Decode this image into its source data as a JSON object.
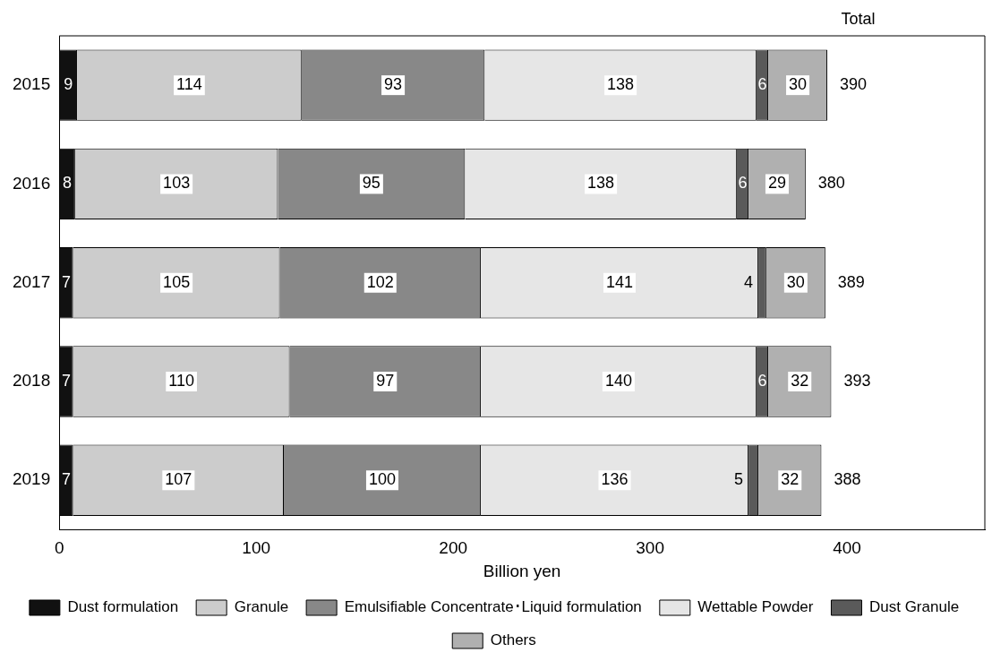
{
  "chart_data": {
    "type": "bar",
    "orientation": "horizontal",
    "stacked": true,
    "xlabel": "Billion yen",
    "categories": [
      "2015",
      "2016",
      "2017",
      "2018",
      "2019"
    ],
    "series": [
      {
        "name": "Dust formulation",
        "color": "#111111",
        "values": [
          9,
          8,
          7,
          7,
          7
        ]
      },
      {
        "name": "Granule",
        "color": "#cccccc",
        "values": [
          114,
          103,
          105,
          110,
          107
        ]
      },
      {
        "name": "Emulsifiable Concentrate･Liquid formulation",
        "color": "#888888",
        "values": [
          93,
          95,
          102,
          97,
          100
        ]
      },
      {
        "name": "Wettable Powder",
        "color": "#e6e6e6",
        "values": [
          138,
          138,
          141,
          140,
          136
        ]
      },
      {
        "name": "Dust Granule",
        "color": "#5a5a5a",
        "values": [
          6,
          6,
          4,
          6,
          5
        ]
      },
      {
        "name": "Others",
        "color": "#b0b0b0",
        "values": [
          30,
          29,
          30,
          32,
          32
        ]
      }
    ],
    "data_labels": true,
    "totals": [
      "390",
      "380",
      "389",
      "393",
      "388"
    ],
    "annotations": [
      "Total"
    ],
    "xlim": [
      0,
      470
    ],
    "xticks": [
      0,
      100,
      200,
      300,
      400
    ],
    "grid": false,
    "legend": "bottom"
  }
}
